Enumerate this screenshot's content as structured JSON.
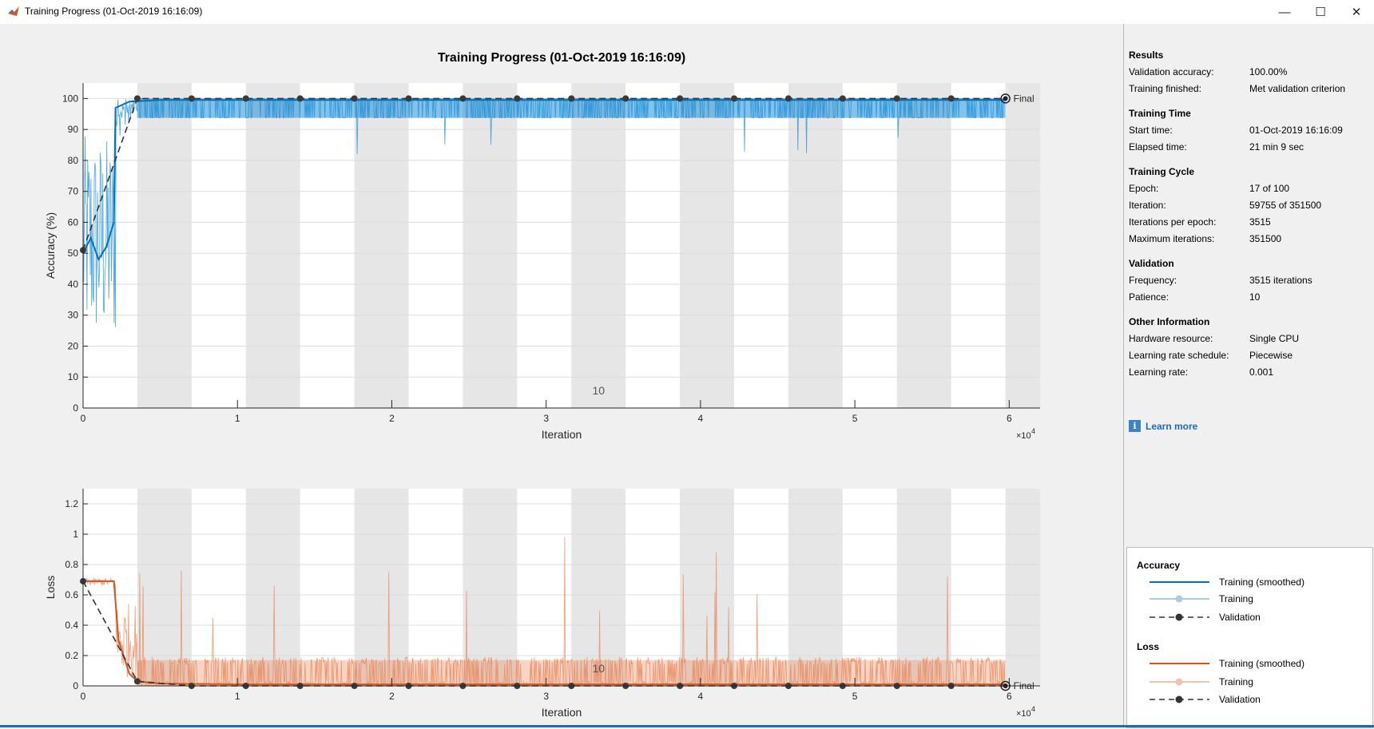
{
  "window": {
    "title": "Training Progress (01-Oct-2019 16:16:09)",
    "minimize_glyph": "—",
    "maximize_glyph": "☐",
    "close_glyph": "✕"
  },
  "page_title": "Training Progress (01-Oct-2019 16:16:09)",
  "colors": {
    "accuracy_smoothed": "#0072bd",
    "accuracy_raw": "#1f8fd8",
    "loss_smoothed": "#d95319",
    "loss_raw": "#e8875a",
    "validation": "#333333",
    "epoch_band": "#e6e6e6",
    "link": "#1d6bb8"
  },
  "side_panel": {
    "results": {
      "title": "Results",
      "rows": [
        {
          "label": "Validation accuracy:",
          "value": "100.00%"
        },
        {
          "label": "Training finished:",
          "value": "Met validation criterion"
        }
      ]
    },
    "training_time": {
      "title": "Training Time",
      "rows": [
        {
          "label": "Start time:",
          "value": "01-Oct-2019 16:16:09"
        },
        {
          "label": "Elapsed time:",
          "value": "21 min 9 sec"
        }
      ]
    },
    "training_cycle": {
      "title": "Training Cycle",
      "rows": [
        {
          "label": "Epoch:",
          "value": "17 of 100"
        },
        {
          "label": "Iteration:",
          "value": "59755 of 351500"
        },
        {
          "label": "Iterations per epoch:",
          "value": "3515"
        },
        {
          "label": "Maximum iterations:",
          "value": "351500"
        }
      ]
    },
    "validation": {
      "title": "Validation",
      "rows": [
        {
          "label": "Frequency:",
          "value": "3515 iterations"
        },
        {
          "label": "Patience:",
          "value": "10"
        }
      ]
    },
    "other_information": {
      "title": "Other Information",
      "rows": [
        {
          "label": "Hardware resource:",
          "value": "Single CPU"
        },
        {
          "label": "Learning rate schedule:",
          "value": "Piecewise"
        },
        {
          "label": "Learning rate:",
          "value": "0.001"
        }
      ]
    },
    "learn_more": {
      "icon": "info-icon",
      "label": "Learn more"
    }
  },
  "legend": {
    "accuracy": {
      "title": "Accuracy",
      "items": [
        "Training (smoothed)",
        "Training",
        "Validation"
      ]
    },
    "loss": {
      "title": "Loss",
      "items": [
        "Training (smoothed)",
        "Training",
        "Validation"
      ]
    }
  },
  "chart_data": [
    {
      "type": "line",
      "title": "",
      "xlabel": "Iteration",
      "ylabel": "Accuracy (%)",
      "xlim": [
        0,
        62000
      ],
      "ylim": [
        0,
        105
      ],
      "x_ticks": [
        0,
        10000,
        20000,
        30000,
        40000,
        50000,
        60000
      ],
      "x_tick_labels": [
        "0",
        "1",
        "2",
        "3",
        "4",
        "5",
        "6"
      ],
      "x_exponent_label": "×10",
      "x_exponent": "4",
      "y_ticks": [
        0,
        10,
        20,
        30,
        40,
        50,
        60,
        70,
        80,
        90,
        100
      ],
      "y_tick_labels": [
        "0",
        "10",
        "20",
        "30",
        "40",
        "50",
        "60",
        "70",
        "80",
        "90",
        "100"
      ],
      "epoch_length": 3515,
      "epoch_mid_label": "10",
      "final_label": "Final",
      "series": [
        {
          "name": "Training (smoothed)",
          "x": [
            0,
            500,
            1000,
            1500,
            2000,
            2100,
            3000,
            5000,
            10000,
            30000,
            59755
          ],
          "values": [
            50,
            55,
            48,
            52,
            60,
            97,
            99,
            99.5,
            99.5,
            99.5,
            99.5
          ]
        },
        {
          "name": "Validation",
          "x": [
            0,
            3515,
            7030,
            10545,
            14060,
            17575,
            21090,
            24605,
            28120,
            31635,
            35150,
            38665,
            42180,
            45695,
            49210,
            52725,
            56240,
            59755
          ],
          "values": [
            51,
            100,
            100,
            100,
            100,
            100,
            100,
            100,
            100,
            100,
            100,
            100,
            100,
            100,
            100,
            100,
            100,
            100
          ]
        }
      ]
    },
    {
      "type": "line",
      "title": "",
      "xlabel": "Iteration",
      "ylabel": "Loss",
      "xlim": [
        0,
        62000
      ],
      "ylim": [
        0,
        1.3
      ],
      "x_ticks": [
        0,
        10000,
        20000,
        30000,
        40000,
        50000,
        60000
      ],
      "x_tick_labels": [
        "0",
        "1",
        "2",
        "3",
        "4",
        "5",
        "6"
      ],
      "x_exponent_label": "×10",
      "x_exponent": "4",
      "y_ticks": [
        0,
        0.2,
        0.4,
        0.6,
        0.8,
        1,
        1.2
      ],
      "y_tick_labels": [
        "0",
        "0.2",
        "0.4",
        "0.6",
        "0.8",
        "1",
        "1.2"
      ],
      "epoch_length": 3515,
      "epoch_mid_label": "10",
      "final_label": "Final",
      "series": [
        {
          "name": "Training (smoothed)",
          "x": [
            0,
            1000,
            2000,
            2300,
            3000,
            3515,
            5000,
            10000,
            30000,
            59755
          ],
          "values": [
            0.69,
            0.69,
            0.69,
            0.3,
            0.08,
            0.03,
            0.015,
            0.01,
            0.01,
            0.01
          ]
        },
        {
          "name": "Validation",
          "x": [
            0,
            3515,
            7030,
            10545,
            14060,
            17575,
            21090,
            24605,
            28120,
            31635,
            35150,
            38665,
            42180,
            45695,
            49210,
            52725,
            56240,
            59755
          ],
          "values": [
            0.69,
            0.03,
            0.0,
            0.0,
            0.0,
            0.0,
            0.0,
            0.0,
            0.0,
            0.0,
            0.0,
            0.0,
            0.0,
            0.0,
            0.0,
            0.0,
            0.0,
            0.0
          ]
        }
      ]
    }
  ]
}
